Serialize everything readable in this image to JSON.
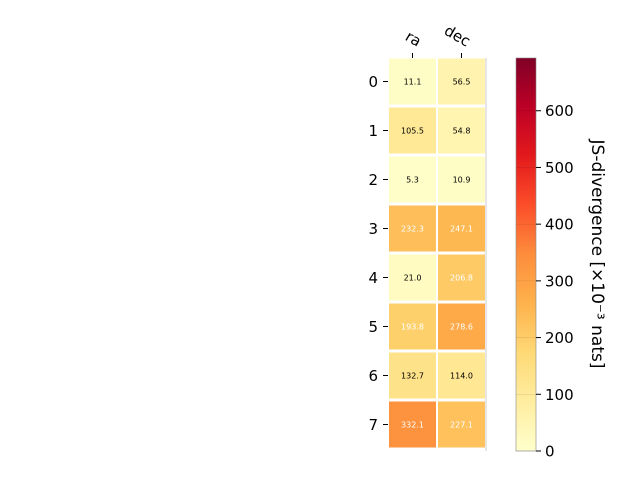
{
  "chart_data": {
    "type": "heatmap",
    "x_categories": [
      "ra",
      "dec"
    ],
    "y_categories": [
      "0",
      "1",
      "2",
      "3",
      "4",
      "5",
      "6",
      "7"
    ],
    "values": [
      [
        11.1,
        56.5
      ],
      [
        105.5,
        54.8
      ],
      [
        5.3,
        10.9
      ],
      [
        232.3,
        247.1
      ],
      [
        21.0,
        206.8
      ],
      [
        193.8,
        278.6
      ],
      [
        132.7,
        114.0
      ],
      [
        332.1,
        227.1
      ]
    ],
    "value_labels": [
      [
        "11.1",
        "56.5"
      ],
      [
        "105.5",
        "54.8"
      ],
      [
        "5.3",
        "10.9"
      ],
      [
        "232.3",
        "247.1"
      ],
      [
        "21.0",
        "206.8"
      ],
      [
        "193.8",
        "278.6"
      ],
      [
        "132.7",
        "114.0"
      ],
      [
        "332.1",
        "227.1"
      ]
    ],
    "colorbar": {
      "label": "JS-divergence [×10⁻³ nats]",
      "min": 0,
      "max": 693,
      "ticks": [
        0,
        100,
        200,
        300,
        400,
        500,
        600
      ],
      "colormap": "YlOrRd"
    },
    "grid": false
  }
}
